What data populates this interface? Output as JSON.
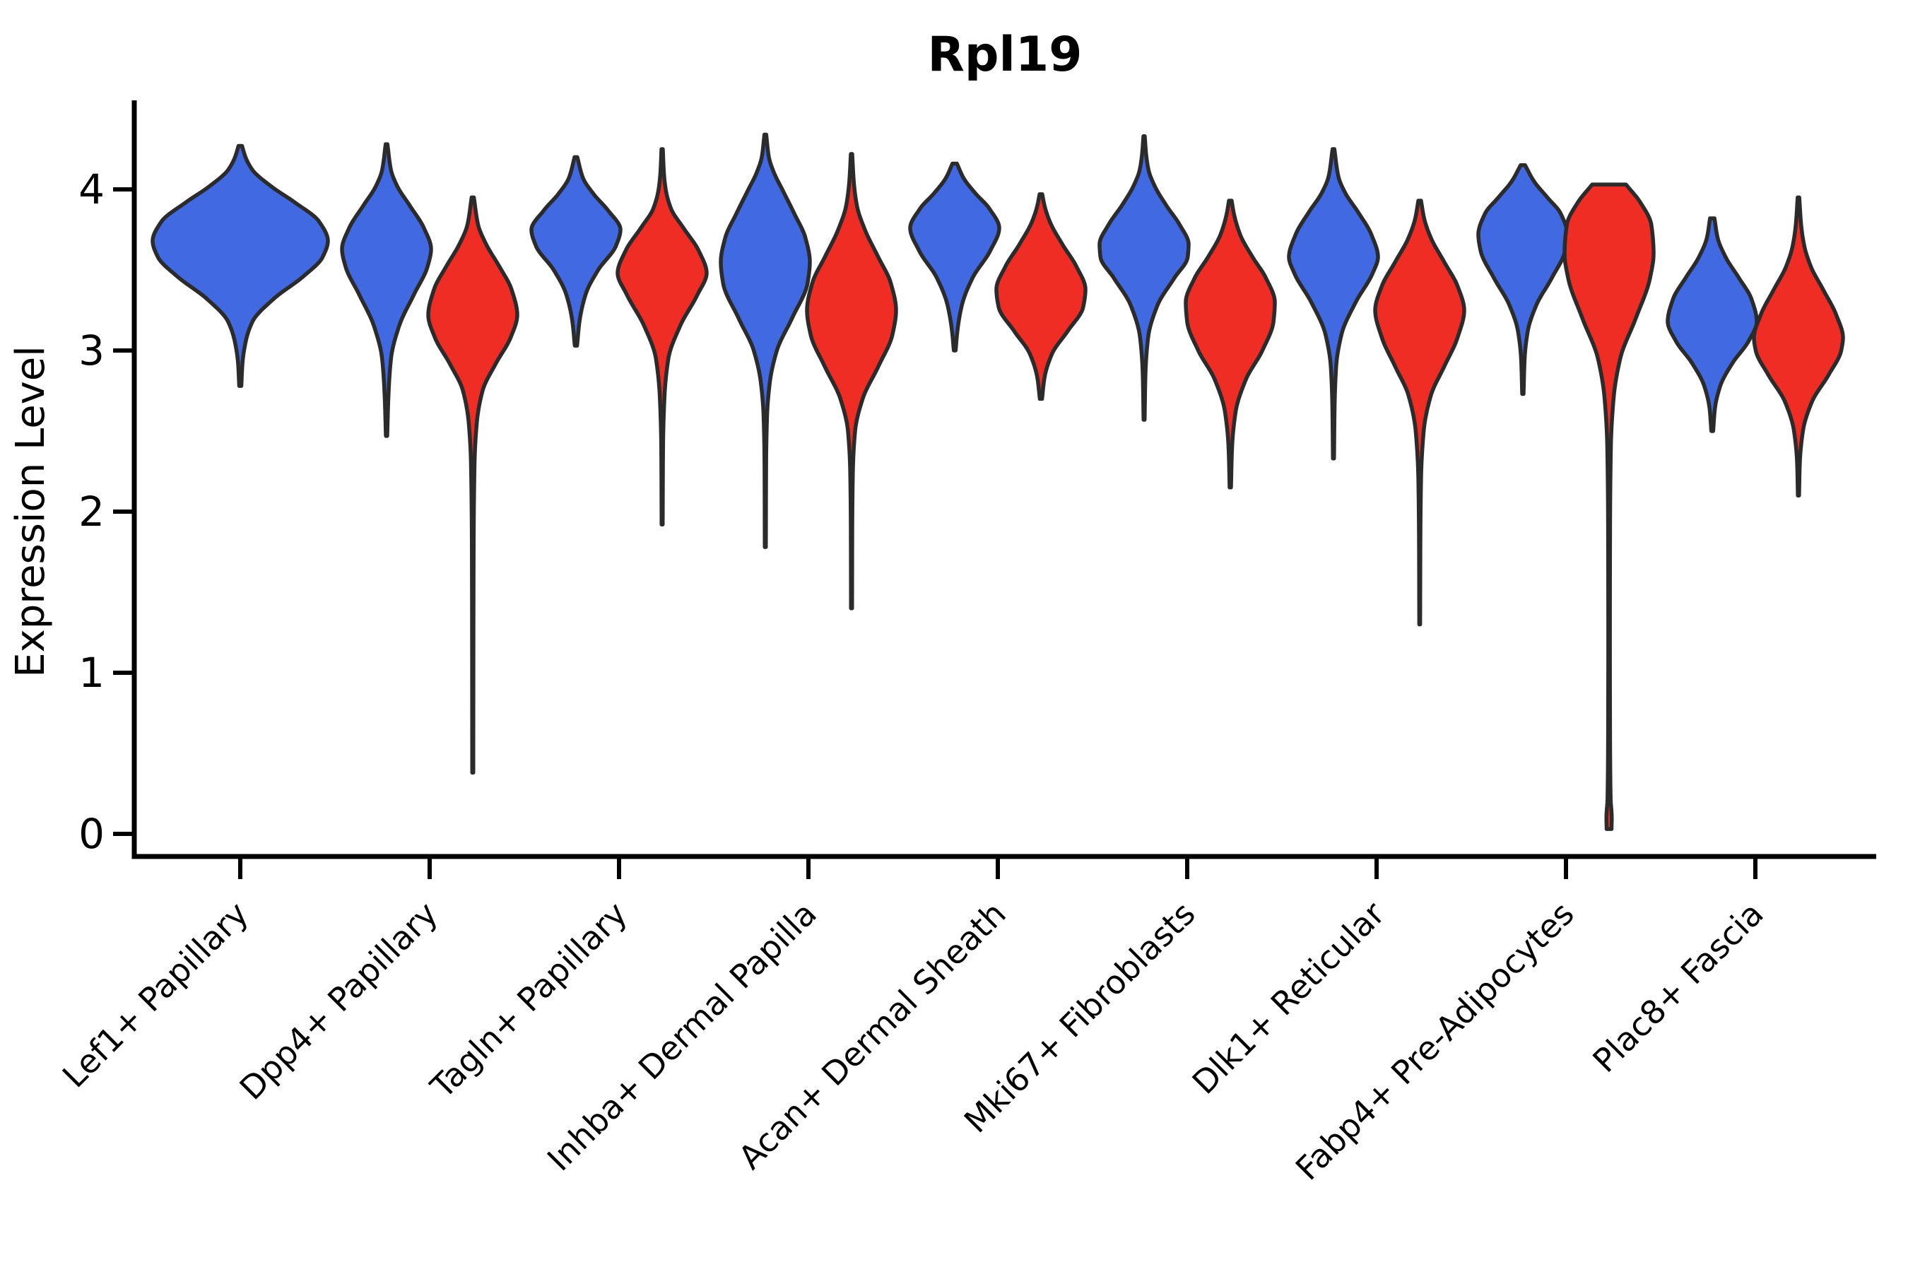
{
  "title": "Rpl19",
  "y_axis": {
    "label": "Expression Level",
    "ticks": [
      "0",
      "1",
      "2",
      "3",
      "4"
    ]
  },
  "colors": {
    "blue": "#4169E1",
    "red": "#EF2D24",
    "outline": "#2B2B2B",
    "axis": "#000000",
    "background": "#FFFFFF"
  },
  "chart_data": {
    "type": "violin",
    "title": "Rpl19",
    "ylabel": "Expression Level",
    "yticks": [
      0,
      1,
      2,
      3,
      4
    ],
    "ylim": [
      -0.15,
      4.55
    ],
    "grid": false,
    "legend_position": "none",
    "split_colors": {
      "blue": "#4169E1",
      "red": "#EF2D24"
    },
    "categories": [
      "Lef1+ Papillary",
      "Dpp4+ Papillary",
      "Tagln+ Papillary",
      "Inhba+ Dermal Papilla",
      "Acan+ Dermal Sheath",
      "Mki67+ Fibroblasts",
      "Dlk1+ Reticular",
      "Fabp4+ Pre-Adipocytes",
      "Plac8+ Fascia"
    ],
    "series": [
      {
        "category": "Lef1+ Papillary",
        "group_index": 0,
        "side": "single",
        "color": "blue",
        "min": 2.78,
        "max": 4.27,
        "peak": 3.68,
        "profile": [
          [
            2.78,
            0.012
          ],
          [
            2.92,
            0.025
          ],
          [
            3.05,
            0.06
          ],
          [
            3.18,
            0.14
          ],
          [
            3.32,
            0.38
          ],
          [
            3.46,
            0.72
          ],
          [
            3.58,
            0.94
          ],
          [
            3.68,
            1.0
          ],
          [
            3.8,
            0.9
          ],
          [
            3.92,
            0.62
          ],
          [
            4.02,
            0.35
          ],
          [
            4.12,
            0.14
          ],
          [
            4.2,
            0.06
          ],
          [
            4.27,
            0.02
          ]
        ]
      },
      {
        "category": "Dpp4+ Papillary",
        "group_index": 1,
        "side": "left",
        "color": "blue",
        "min": 2.47,
        "max": 4.28,
        "peak": 3.63,
        "profile": [
          [
            2.47,
            0.015
          ],
          [
            2.7,
            0.04
          ],
          [
            2.95,
            0.1
          ],
          [
            3.15,
            0.28
          ],
          [
            3.35,
            0.62
          ],
          [
            3.52,
            0.92
          ],
          [
            3.63,
            1.0
          ],
          [
            3.76,
            0.84
          ],
          [
            3.9,
            0.52
          ],
          [
            4.02,
            0.24
          ],
          [
            4.12,
            0.1
          ],
          [
            4.28,
            0.02
          ]
        ]
      },
      {
        "category": "Dpp4+ Papillary",
        "group_index": 1,
        "side": "right",
        "color": "red",
        "min": 0.38,
        "max": 3.95,
        "peak": 3.22,
        "profile": [
          [
            0.38,
            0.012
          ],
          [
            1.0,
            0.014
          ],
          [
            1.8,
            0.02
          ],
          [
            2.3,
            0.04
          ],
          [
            2.55,
            0.09
          ],
          [
            2.75,
            0.22
          ],
          [
            2.92,
            0.52
          ],
          [
            3.08,
            0.85
          ],
          [
            3.22,
            1.0
          ],
          [
            3.38,
            0.87
          ],
          [
            3.52,
            0.6
          ],
          [
            3.66,
            0.3
          ],
          [
            3.78,
            0.12
          ],
          [
            3.95,
            0.025
          ]
        ]
      },
      {
        "category": "Tagln+ Papillary",
        "group_index": 2,
        "side": "left",
        "color": "blue",
        "min": 3.03,
        "max": 4.2,
        "peak": 3.75,
        "profile": [
          [
            3.03,
            0.025
          ],
          [
            3.18,
            0.08
          ],
          [
            3.35,
            0.22
          ],
          [
            3.5,
            0.5
          ],
          [
            3.65,
            0.9
          ],
          [
            3.75,
            1.0
          ],
          [
            3.87,
            0.72
          ],
          [
            3.97,
            0.4
          ],
          [
            4.07,
            0.16
          ],
          [
            4.2,
            0.03
          ]
        ]
      },
      {
        "category": "Tagln+ Papillary",
        "group_index": 2,
        "side": "right",
        "color": "red",
        "min": 1.92,
        "max": 4.25,
        "peak": 3.48,
        "profile": [
          [
            1.92,
            0.012
          ],
          [
            2.4,
            0.02
          ],
          [
            2.7,
            0.05
          ],
          [
            2.95,
            0.14
          ],
          [
            3.15,
            0.4
          ],
          [
            3.35,
            0.8
          ],
          [
            3.48,
            1.0
          ],
          [
            3.62,
            0.82
          ],
          [
            3.76,
            0.48
          ],
          [
            3.88,
            0.2
          ],
          [
            4.0,
            0.08
          ],
          [
            4.1,
            0.04
          ],
          [
            4.25,
            0.015
          ]
        ]
      },
      {
        "category": "Inhba+ Dermal Papilla",
        "group_index": 3,
        "side": "left",
        "color": "blue",
        "min": 1.78,
        "max": 4.34,
        "peak": 3.55,
        "profile": [
          [
            1.78,
            0.012
          ],
          [
            2.3,
            0.018
          ],
          [
            2.6,
            0.04
          ],
          [
            2.8,
            0.1
          ],
          [
            3.0,
            0.26
          ],
          [
            3.2,
            0.6
          ],
          [
            3.42,
            0.95
          ],
          [
            3.55,
            1.0
          ],
          [
            3.7,
            0.9
          ],
          [
            3.85,
            0.65
          ],
          [
            4.0,
            0.38
          ],
          [
            4.1,
            0.2
          ],
          [
            4.2,
            0.08
          ],
          [
            4.34,
            0.02
          ]
        ]
      },
      {
        "category": "Inhba+ Dermal Papilla",
        "group_index": 3,
        "side": "right",
        "color": "red",
        "min": 1.4,
        "max": 4.22,
        "peak": 3.25,
        "profile": [
          [
            1.4,
            0.012
          ],
          [
            1.9,
            0.016
          ],
          [
            2.25,
            0.03
          ],
          [
            2.5,
            0.08
          ],
          [
            2.7,
            0.25
          ],
          [
            2.9,
            0.6
          ],
          [
            3.1,
            0.92
          ],
          [
            3.25,
            1.0
          ],
          [
            3.42,
            0.88
          ],
          [
            3.58,
            0.6
          ],
          [
            3.75,
            0.3
          ],
          [
            3.9,
            0.12
          ],
          [
            4.05,
            0.05
          ],
          [
            4.22,
            0.015
          ]
        ]
      },
      {
        "category": "Acan+ Dermal Sheath",
        "group_index": 4,
        "side": "left",
        "color": "blue",
        "min": 3.0,
        "max": 4.16,
        "peak": 3.76,
        "profile": [
          [
            3.0,
            0.02
          ],
          [
            3.12,
            0.06
          ],
          [
            3.28,
            0.16
          ],
          [
            3.45,
            0.4
          ],
          [
            3.62,
            0.8
          ],
          [
            3.76,
            1.0
          ],
          [
            3.88,
            0.78
          ],
          [
            3.98,
            0.45
          ],
          [
            4.07,
            0.2
          ],
          [
            4.16,
            0.05
          ]
        ]
      },
      {
        "category": "Acan+ Dermal Sheath",
        "group_index": 4,
        "side": "right",
        "color": "red",
        "min": 2.7,
        "max": 3.97,
        "peak": 3.38,
        "profile": [
          [
            2.7,
            0.025
          ],
          [
            2.83,
            0.08
          ],
          [
            2.98,
            0.25
          ],
          [
            3.12,
            0.6
          ],
          [
            3.27,
            0.95
          ],
          [
            3.38,
            1.0
          ],
          [
            3.52,
            0.8
          ],
          [
            3.66,
            0.48
          ],
          [
            3.8,
            0.2
          ],
          [
            3.9,
            0.08
          ],
          [
            3.97,
            0.03
          ]
        ]
      },
      {
        "category": "Mki67+ Fibroblasts",
        "group_index": 5,
        "side": "left",
        "color": "blue",
        "min": 2.57,
        "max": 4.33,
        "peak": 3.66,
        "profile": [
          [
            2.57,
            0.012
          ],
          [
            2.85,
            0.03
          ],
          [
            3.08,
            0.09
          ],
          [
            3.28,
            0.3
          ],
          [
            3.45,
            0.68
          ],
          [
            3.58,
            0.98
          ],
          [
            3.66,
            1.0
          ],
          [
            3.78,
            0.8
          ],
          [
            3.9,
            0.5
          ],
          [
            4.02,
            0.24
          ],
          [
            4.12,
            0.1
          ],
          [
            4.22,
            0.045
          ],
          [
            4.33,
            0.015
          ]
        ]
      },
      {
        "category": "Mki67+ Fibroblasts",
        "group_index": 5,
        "side": "right",
        "color": "red",
        "min": 2.15,
        "max": 3.93,
        "peak": 3.3,
        "profile": [
          [
            2.15,
            0.015
          ],
          [
            2.4,
            0.04
          ],
          [
            2.62,
            0.12
          ],
          [
            2.82,
            0.35
          ],
          [
            3.0,
            0.72
          ],
          [
            3.18,
            0.97
          ],
          [
            3.3,
            1.0
          ],
          [
            3.45,
            0.8
          ],
          [
            3.58,
            0.5
          ],
          [
            3.72,
            0.22
          ],
          [
            3.85,
            0.08
          ],
          [
            3.93,
            0.03
          ]
        ]
      },
      {
        "category": "Dlk1+ Reticular",
        "group_index": 6,
        "side": "left",
        "color": "blue",
        "min": 2.33,
        "max": 4.25,
        "peak": 3.58,
        "profile": [
          [
            2.33,
            0.012
          ],
          [
            2.65,
            0.025
          ],
          [
            2.9,
            0.06
          ],
          [
            3.1,
            0.18
          ],
          [
            3.3,
            0.5
          ],
          [
            3.48,
            0.88
          ],
          [
            3.58,
            1.0
          ],
          [
            3.72,
            0.85
          ],
          [
            3.86,
            0.55
          ],
          [
            3.98,
            0.26
          ],
          [
            4.08,
            0.11
          ],
          [
            4.25,
            0.02
          ]
        ]
      },
      {
        "category": "Dlk1+ Reticular",
        "group_index": 6,
        "side": "right",
        "color": "red",
        "min": 1.3,
        "max": 3.93,
        "peak": 3.25,
        "profile": [
          [
            1.3,
            0.01
          ],
          [
            1.8,
            0.015
          ],
          [
            2.2,
            0.03
          ],
          [
            2.5,
            0.09
          ],
          [
            2.72,
            0.25
          ],
          [
            2.9,
            0.55
          ],
          [
            3.08,
            0.85
          ],
          [
            3.25,
            1.0
          ],
          [
            3.4,
            0.85
          ],
          [
            3.55,
            0.55
          ],
          [
            3.7,
            0.25
          ],
          [
            3.82,
            0.1
          ],
          [
            3.93,
            0.03
          ]
        ]
      },
      {
        "category": "Fabp4+ Pre-Adipocytes",
        "group_index": 7,
        "side": "left",
        "color": "blue",
        "min": 2.73,
        "max": 4.15,
        "peak": 3.72,
        "profile": [
          [
            2.73,
            0.015
          ],
          [
            2.95,
            0.04
          ],
          [
            3.12,
            0.11
          ],
          [
            3.28,
            0.3
          ],
          [
            3.45,
            0.65
          ],
          [
            3.62,
            0.95
          ],
          [
            3.72,
            1.0
          ],
          [
            3.85,
            0.85
          ],
          [
            3.95,
            0.55
          ],
          [
            4.05,
            0.25
          ],
          [
            4.15,
            0.05
          ]
        ]
      },
      {
        "category": "Fabp4+ Pre-Adipocytes",
        "group_index": 7,
        "side": "right",
        "color": "red",
        "min": 0.03,
        "max": 4.03,
        "peak": 3.6,
        "flat_top": true,
        "profile": [
          [
            0.03,
            0.055
          ],
          [
            0.1,
            0.06
          ],
          [
            0.22,
            0.035
          ],
          [
            0.6,
            0.022
          ],
          [
            1.2,
            0.018
          ],
          [
            1.9,
            0.022
          ],
          [
            2.4,
            0.04
          ],
          [
            2.7,
            0.1
          ],
          [
            2.95,
            0.25
          ],
          [
            3.2,
            0.6
          ],
          [
            3.45,
            0.92
          ],
          [
            3.6,
            1.0
          ],
          [
            3.78,
            0.95
          ],
          [
            3.92,
            0.7
          ],
          [
            4.03,
            0.38
          ]
        ]
      },
      {
        "category": "Plac8+ Fascia",
        "group_index": 8,
        "side": "left",
        "color": "blue",
        "min": 2.5,
        "max": 3.82,
        "peak": 3.18,
        "profile": [
          [
            2.5,
            0.02
          ],
          [
            2.64,
            0.06
          ],
          [
            2.78,
            0.18
          ],
          [
            2.92,
            0.45
          ],
          [
            3.06,
            0.82
          ],
          [
            3.18,
            1.0
          ],
          [
            3.32,
            0.88
          ],
          [
            3.45,
            0.6
          ],
          [
            3.58,
            0.3
          ],
          [
            3.7,
            0.12
          ],
          [
            3.82,
            0.05
          ]
        ]
      },
      {
        "category": "Plac8+ Fascia",
        "group_index": 8,
        "side": "right",
        "color": "red",
        "min": 2.1,
        "max": 3.95,
        "peak": 3.08,
        "profile": [
          [
            2.1,
            0.013
          ],
          [
            2.3,
            0.03
          ],
          [
            2.5,
            0.1
          ],
          [
            2.68,
            0.3
          ],
          [
            2.85,
            0.68
          ],
          [
            3.0,
            0.96
          ],
          [
            3.08,
            1.0
          ],
          [
            3.22,
            0.85
          ],
          [
            3.38,
            0.55
          ],
          [
            3.52,
            0.28
          ],
          [
            3.65,
            0.13
          ],
          [
            3.78,
            0.06
          ],
          [
            3.95,
            0.018
          ]
        ]
      }
    ]
  }
}
